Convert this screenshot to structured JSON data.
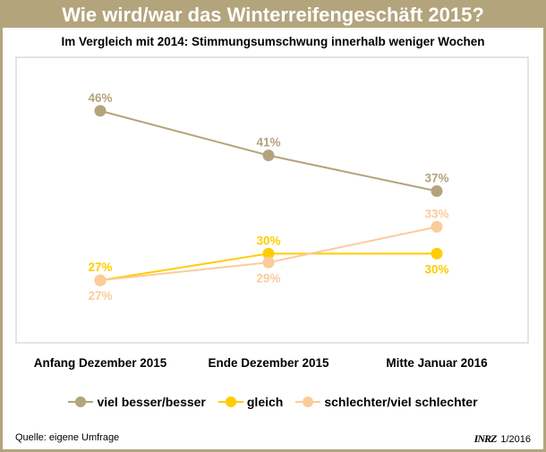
{
  "title": "Wie wird/war das Winterreifengeschäft 2015?",
  "chart_data": {
    "type": "line",
    "title": "Im Vergleich mit 2014: Stimmungsumschwung innerhalb weniger Wochen",
    "categories": [
      "Anfang Dezember 2015",
      "Ende Dezember 2015",
      "Mitte Januar 2016"
    ],
    "ylim": [
      20,
      52
    ],
    "grid": false,
    "legend_position": "bottom",
    "series": [
      {
        "name": "viel besser/besser",
        "color": "#b3a47c",
        "values": [
          46,
          41,
          37
        ],
        "labels": [
          "46%",
          "41%",
          "37%"
        ]
      },
      {
        "name": "gleich",
        "color": "#ffcc00",
        "values": [
          27,
          30,
          30
        ],
        "labels": [
          "27%",
          "30%",
          "30%"
        ]
      },
      {
        "name": "schlechter/viel schlechter",
        "color": "#fbcb9c",
        "values": [
          27,
          29,
          33
        ],
        "labels": [
          "27%",
          "29%",
          "33%"
        ]
      }
    ]
  },
  "source": "Quelle: eigene Umfrage",
  "logo": "NRZ",
  "date": "1/2016"
}
